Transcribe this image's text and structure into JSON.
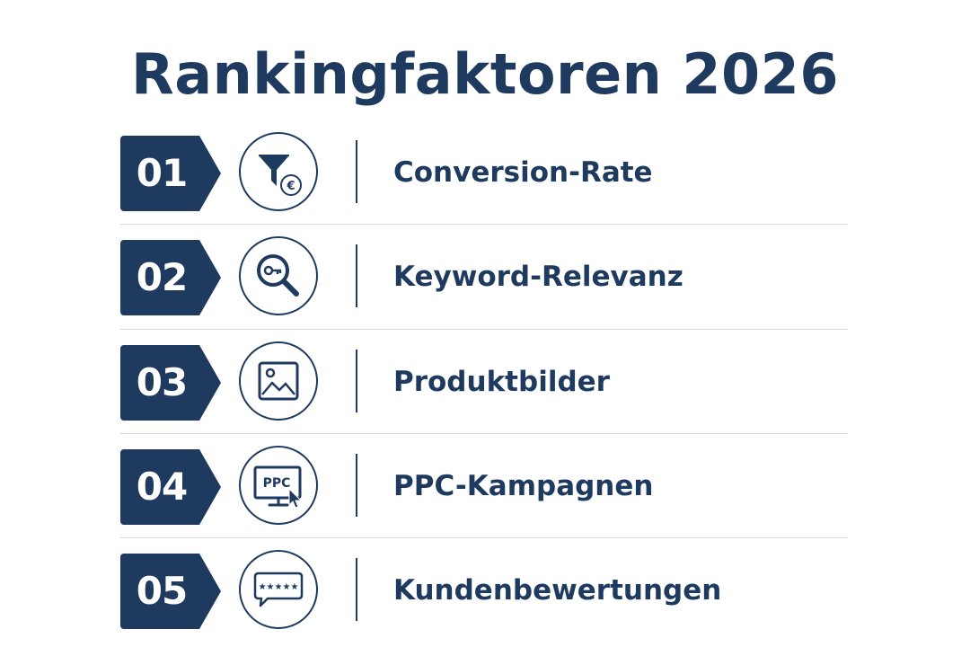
{
  "title": "Rankingfaktoren 2026",
  "colors": {
    "primary": "#1f3a5f",
    "divider": "#d6dae0",
    "background": "#ffffff"
  },
  "factors": [
    {
      "number": "01",
      "label": "Conversion-Rate",
      "icon": "funnel-euro-icon",
      "icon_text": "€"
    },
    {
      "number": "02",
      "label": "Keyword-Relevanz",
      "icon": "magnifier-key-icon"
    },
    {
      "number": "03",
      "label": "Produktbilder",
      "icon": "image-icon"
    },
    {
      "number": "04",
      "label": "PPC-Kampagnen",
      "icon": "ppc-monitor-icon",
      "icon_text": "PPC"
    },
    {
      "number": "05",
      "label": "Kundenbewertungen",
      "icon": "review-stars-icon",
      "icon_text": "★★★★★"
    }
  ]
}
